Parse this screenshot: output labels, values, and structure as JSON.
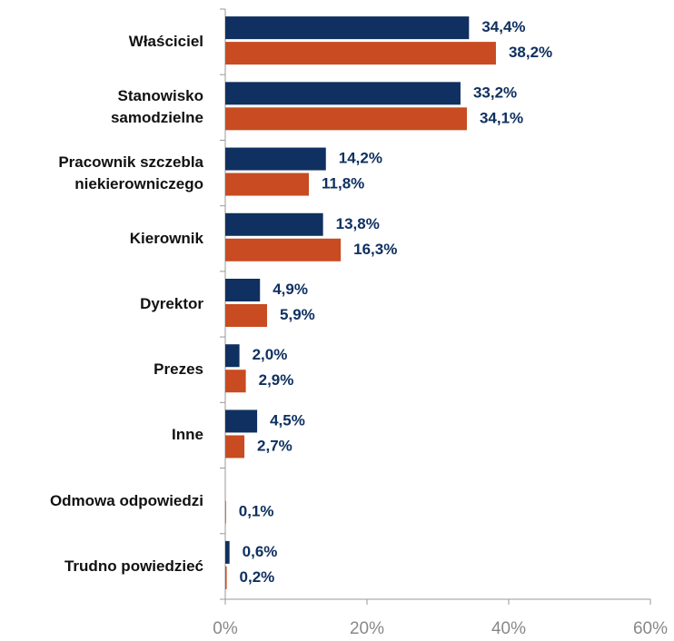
{
  "chart_data": {
    "type": "hbar",
    "categories": [
      "Właściciel",
      "Stanowisko \nsamodzielne",
      "Pracownik szczebla\nniekierowniczego ",
      "Kierownik",
      "Dyrektor",
      "Prezes",
      "Inne",
      "Odmowa odpowiedzi",
      "Trudno powiedzieć"
    ],
    "series": [
      {
        "color": "#0f3060",
        "values": [
          34.4,
          33.2,
          14.2,
          13.8,
          4.9,
          2.0,
          4.5,
          null,
          0.6
        ],
        "value_labels": [
          "34,4%",
          "33,2%",
          "14,2%",
          "13,8%",
          "4,9%",
          "2,0%",
          "4,5%",
          null,
          "0,6%"
        ]
      },
      {
        "color": "#c84b22",
        "values": [
          38.2,
          34.1,
          11.8,
          16.3,
          5.9,
          2.9,
          2.7,
          0.1,
          0.2
        ],
        "value_labels": [
          "38,2%",
          "34,1%",
          "11,8%",
          "16,3%",
          "5,9%",
          "2,9%",
          "2,7%",
          "0,1%",
          "0,2%"
        ]
      }
    ],
    "xlim": [
      0,
      60
    ],
    "xticks": [
      {
        "value": 0,
        "label": "0%"
      },
      {
        "value": 20,
        "label": "20%"
      },
      {
        "value": 40,
        "label": "40%"
      },
      {
        "value": 60,
        "label": "60%"
      }
    ]
  }
}
